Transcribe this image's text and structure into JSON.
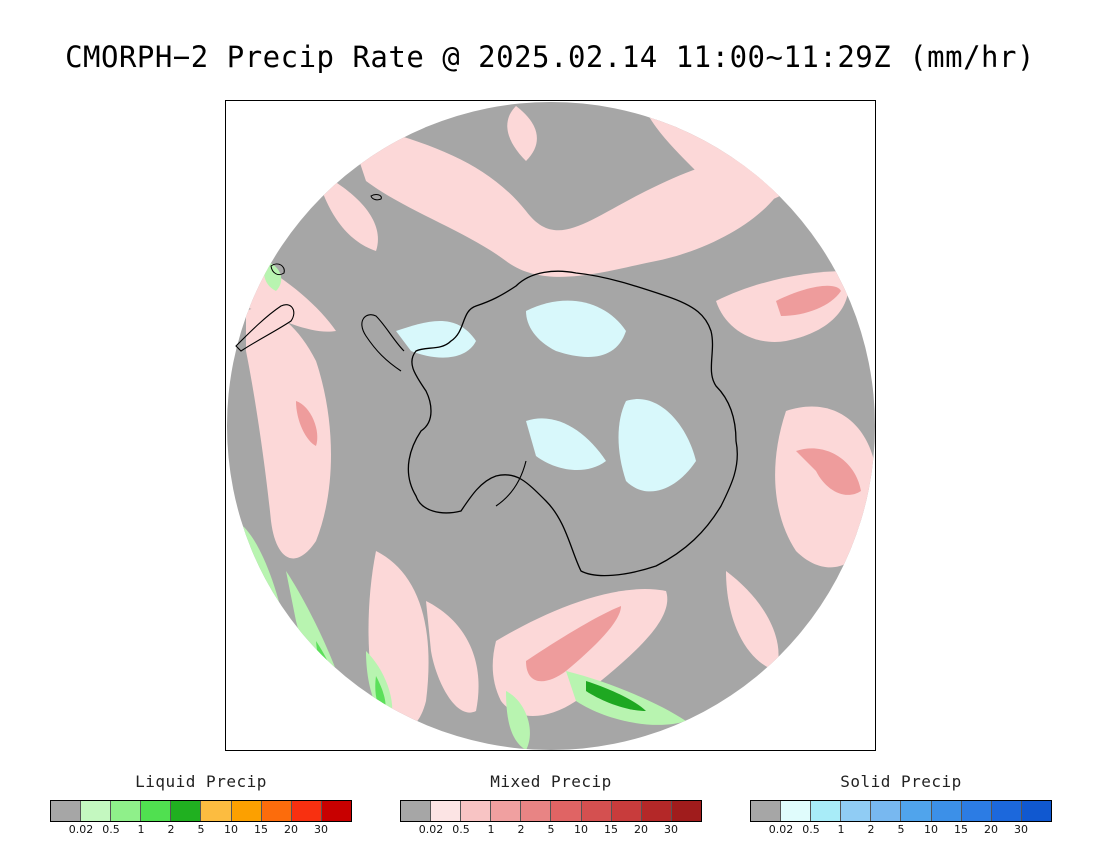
{
  "title": "CMORPH−2 Precip Rate @ 2025.02.14 11:00~11:29Z (mm/hr)",
  "map": {
    "projection": "south-polar-stereographic",
    "colors": {
      "background_gray": "#a6a6a6",
      "mixed_light": "#fcd8d8",
      "mixed_medium": "#ee9c9c",
      "mixed_heavy": "#d46a6a",
      "liquid_light": "#b8f4b0",
      "liquid_medium": "#5be05a",
      "liquid_heavy": "#1ea821",
      "solid_light": "#d8f8fb",
      "coastline": "#000000"
    }
  },
  "legends": [
    {
      "title": "Liquid Precip",
      "colors": [
        "#a6a6a6",
        "#c4f8c0",
        "#8ff08a",
        "#50e050",
        "#20b020",
        "#fcbc40",
        "#fca000",
        "#fc6c0c",
        "#f83010",
        "#c80000"
      ],
      "ticks": [
        "0.02",
        "0.5",
        "1",
        "2",
        "5",
        "10",
        "15",
        "20",
        "30"
      ]
    },
    {
      "title": "Mixed Precip",
      "colors": [
        "#a6a6a6",
        "#fce4e4",
        "#f8c4c4",
        "#f0a0a0",
        "#e88484",
        "#e06464",
        "#d45050",
        "#c83c3c",
        "#b42828",
        "#a01c1c"
      ],
      "ticks": [
        "0.02",
        "0.5",
        "1",
        "2",
        "5",
        "10",
        "15",
        "20",
        "30"
      ]
    },
    {
      "title": "Solid Precip",
      "colors": [
        "#a6a6a6",
        "#e0fcfc",
        "#a8ecf8",
        "#90ccf4",
        "#78b8f0",
        "#50a4ec",
        "#3c90e8",
        "#2c7ce4",
        "#1c68dc",
        "#1058d0"
      ],
      "ticks": [
        "0.02",
        "0.5",
        "1",
        "2",
        "5",
        "10",
        "15",
        "20",
        "30"
      ]
    }
  ]
}
